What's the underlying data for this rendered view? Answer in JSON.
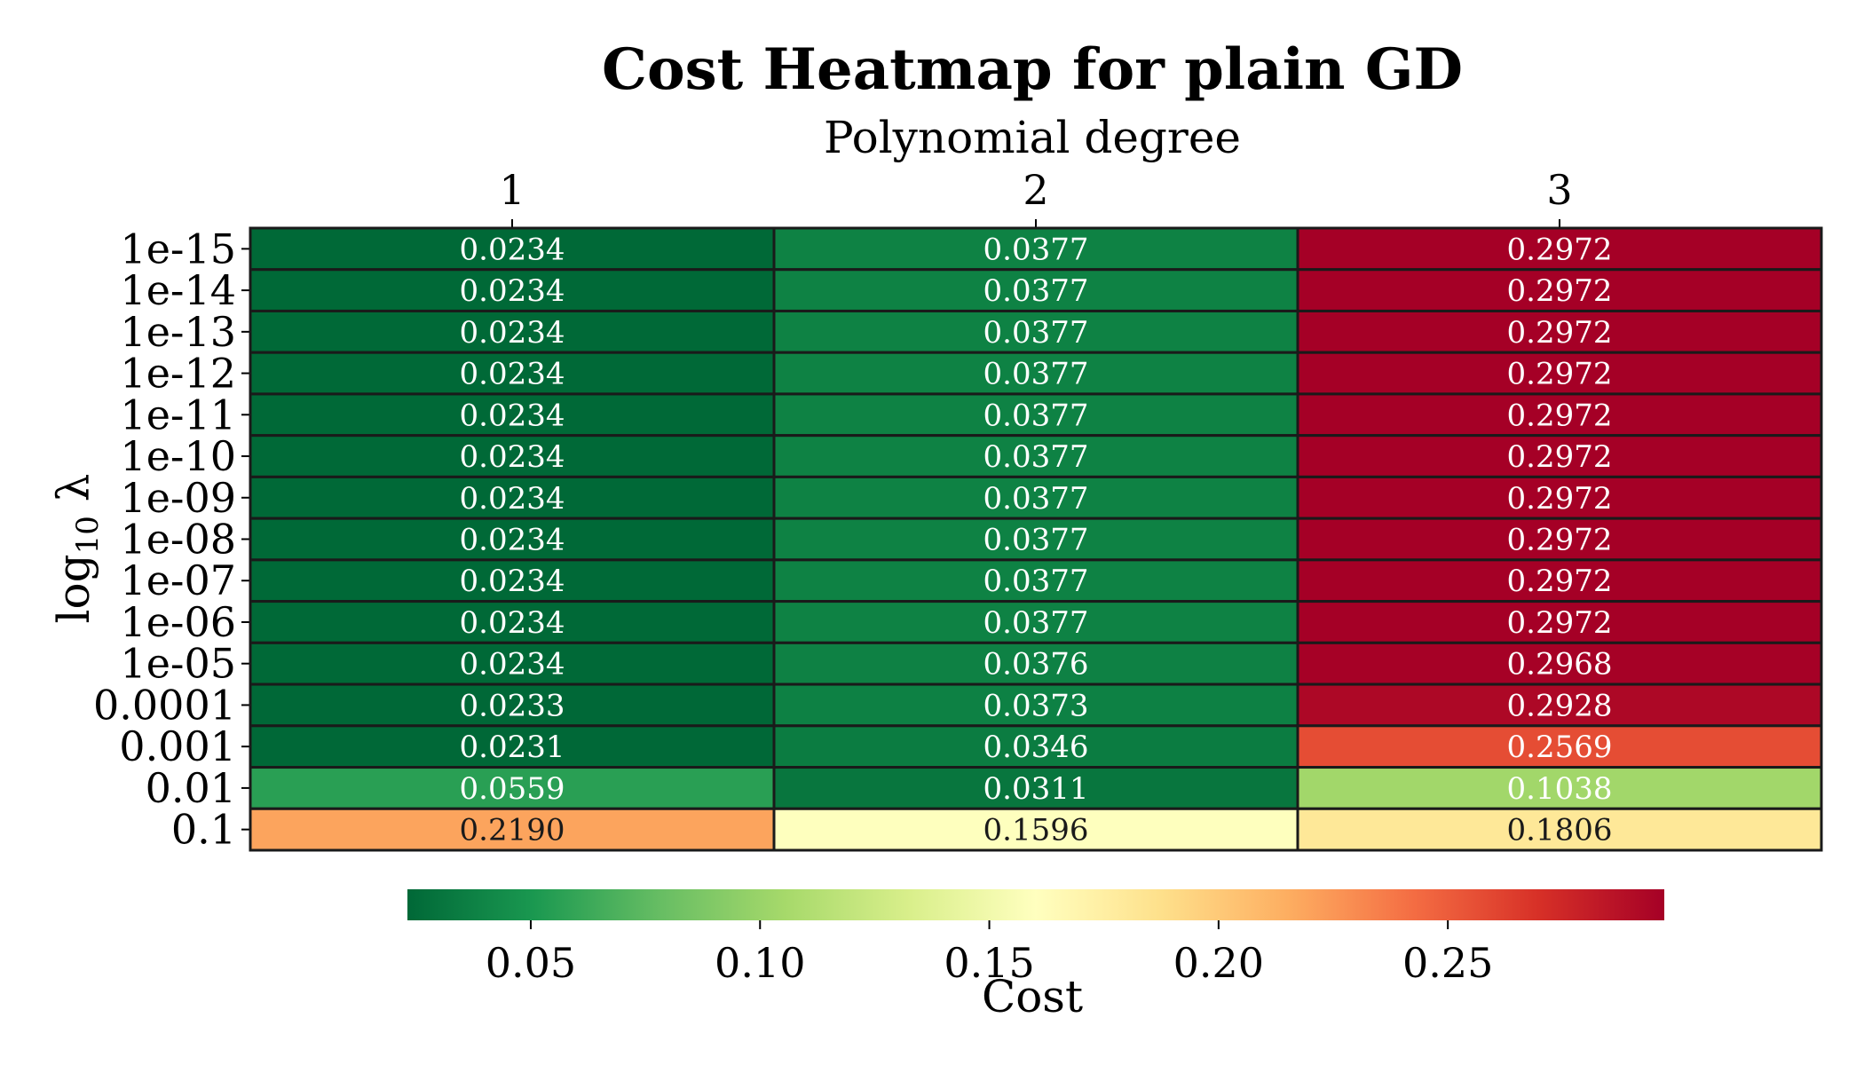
{
  "chart_data": {
    "type": "heatmap",
    "title": "Cost Heatmap for plain GD",
    "xlabel": "Polynomial degree",
    "ylabel": "log10 λ",
    "x_categories": [
      "1",
      "2",
      "3"
    ],
    "y_categories": [
      "1e-15",
      "1e-14",
      "1e-13",
      "1e-12",
      "1e-11",
      "1e-10",
      "1e-09",
      "1e-08",
      "1e-07",
      "1e-06",
      "1e-05",
      "0.0001",
      "0.001",
      "0.01",
      "0.1"
    ],
    "values": [
      [
        0.0234,
        0.0377,
        0.2972
      ],
      [
        0.0234,
        0.0377,
        0.2972
      ],
      [
        0.0234,
        0.0377,
        0.2972
      ],
      [
        0.0234,
        0.0377,
        0.2972
      ],
      [
        0.0234,
        0.0377,
        0.2972
      ],
      [
        0.0234,
        0.0377,
        0.2972
      ],
      [
        0.0234,
        0.0377,
        0.2972
      ],
      [
        0.0234,
        0.0377,
        0.2972
      ],
      [
        0.0234,
        0.0377,
        0.2972
      ],
      [
        0.0234,
        0.0377,
        0.2972
      ],
      [
        0.0234,
        0.0376,
        0.2968
      ],
      [
        0.0233,
        0.0373,
        0.2928
      ],
      [
        0.0231,
        0.0346,
        0.2569
      ],
      [
        0.0559,
        0.0311,
        0.1038
      ],
      [
        0.219,
        0.1596,
        0.1806
      ]
    ],
    "colormap": "RdYlGn_r",
    "colorbar": {
      "label": "Cost",
      "range": [
        0.0231,
        0.2972
      ],
      "ticks": [
        0.05,
        0.1,
        0.15,
        0.2,
        0.25
      ],
      "tick_labels": [
        "0.05",
        "0.10",
        "0.15",
        "0.20",
        "0.25"
      ],
      "orientation": "horizontal"
    },
    "x_axis_position": "top",
    "grid": false
  }
}
